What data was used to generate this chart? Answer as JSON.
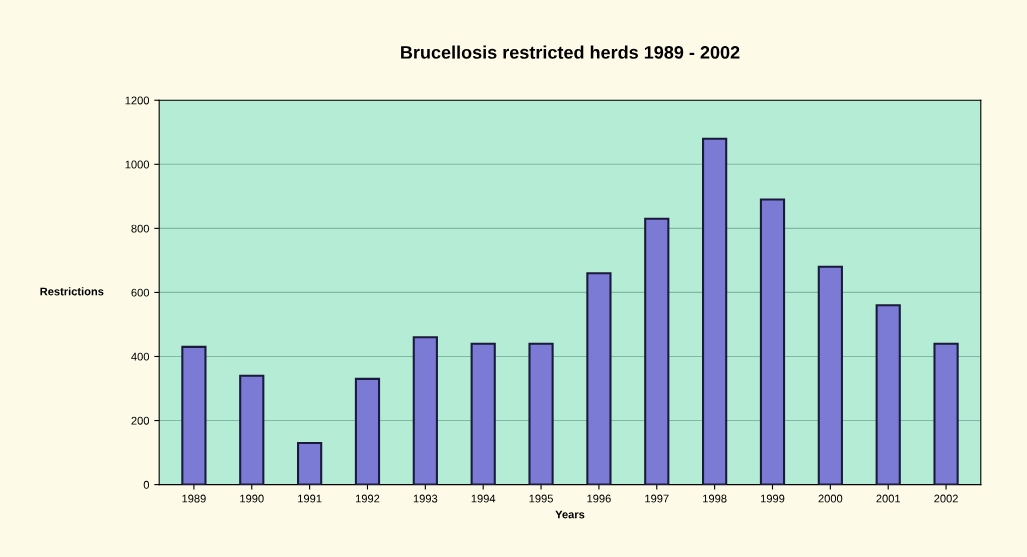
{
  "chart_data": {
    "type": "bar",
    "title": "Brucellosis restricted herds 1989 - 2002",
    "xlabel": "Years",
    "ylabel": "Restrictions",
    "categories": [
      "1989",
      "1990",
      "1991",
      "1992",
      "1993",
      "1994",
      "1995",
      "1996",
      "1997",
      "1998",
      "1999",
      "2000",
      "2001",
      "2002"
    ],
    "values": [
      430,
      340,
      130,
      330,
      460,
      440,
      440,
      660,
      830,
      1080,
      890,
      680,
      560,
      440
    ],
    "color": "#7b7bd6",
    "ylim": [
      0,
      1200
    ],
    "yticks": [
      0,
      200,
      400,
      600,
      800,
      1000,
      1200
    ],
    "grid": "y"
  }
}
